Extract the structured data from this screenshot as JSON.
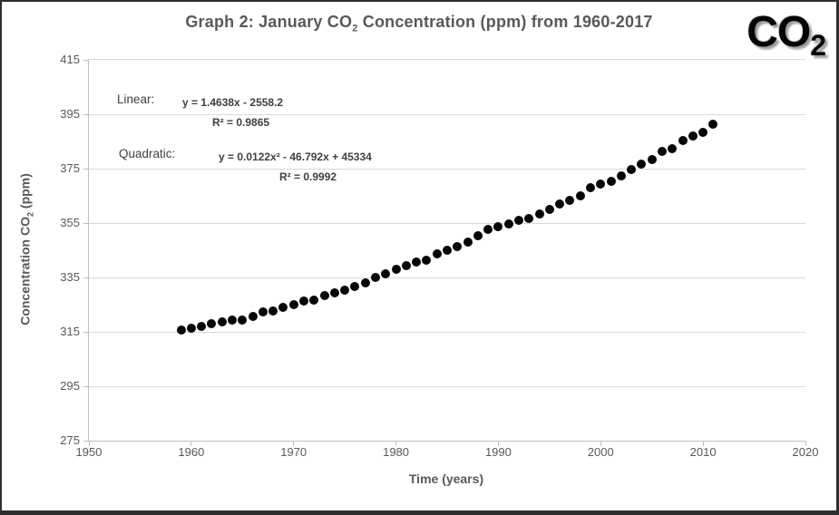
{
  "title": {
    "prefix": "Graph 2: January CO",
    "subscript": "2",
    "suffix": " Concentration (ppm) from 1960-2017"
  },
  "logo": {
    "text": "CO",
    "subscript": "2"
  },
  "axes": {
    "x_title": "Time (years)",
    "y_title_prefix": "Concentration CO",
    "y_title_subscript": "2",
    "y_title_suffix": " (ppm)"
  },
  "annotations": {
    "linear_label": "Linear:",
    "linear_equation": "y = 1.4638x - 2558.2",
    "linear_r2": "R² = 0.9865",
    "quadratic_label": "Quadratic:",
    "quadratic_equation": "y = 0.0122x² - 46.792x + 45334",
    "quadratic_r2": "R² = 0.9992"
  },
  "chart_data": {
    "type": "scatter",
    "title": "Graph 2: January CO₂ Concentration (ppm) from 1960-2017",
    "xlabel": "Time (years)",
    "ylabel": "Concentration CO₂ (ppm)",
    "xlim": [
      1950,
      2020
    ],
    "ylim": [
      275,
      415
    ],
    "x_ticks": [
      1950,
      1960,
      1970,
      1980,
      1990,
      2000,
      2010,
      2020
    ],
    "y_ticks": [
      275,
      295,
      315,
      335,
      355,
      375,
      395,
      415
    ],
    "grid": "horizontal-only",
    "legend": "none",
    "marker_color": "#060606",
    "series": [
      {
        "name": "January CO2 concentration (ppm)",
        "x": [
          1959,
          1960,
          1961,
          1962,
          1963,
          1964,
          1965,
          1966,
          1967,
          1968,
          1969,
          1970,
          1971,
          1972,
          1973,
          1974,
          1975,
          1976,
          1977,
          1978,
          1979,
          1980,
          1981,
          1982,
          1983,
          1984,
          1985,
          1986,
          1987,
          1988,
          1989,
          1990,
          1991,
          1992,
          1993,
          1994,
          1995,
          1996,
          1997,
          1998,
          1999,
          2000,
          2001,
          2002,
          2003,
          2004,
          2005,
          2006,
          2007,
          2008,
          2009,
          2010,
          2011
        ],
        "y": [
          315.6,
          316.4,
          316.9,
          317.9,
          318.7,
          319.4,
          319.4,
          320.6,
          322.3,
          322.6,
          324.0,
          325.1,
          326.2,
          326.8,
          328.5,
          329.4,
          330.4,
          331.7,
          332.9,
          335.0,
          336.2,
          338.0,
          339.2,
          340.8,
          341.4,
          343.7,
          345.0,
          346.3,
          348.0,
          350.4,
          352.8,
          353.7,
          354.7,
          356.0,
          356.7,
          358.4,
          360.0,
          362.1,
          363.2,
          365.0,
          368.1,
          369.3,
          370.5,
          372.4,
          374.7,
          376.8,
          378.2,
          381.4,
          382.5,
          385.4,
          386.9,
          388.5,
          391.2
        ]
      }
    ],
    "trendlines": [
      {
        "name": "Linear",
        "equation": "y = 1.4638x - 2558.2",
        "r_squared": "0.9865"
      },
      {
        "name": "Quadratic",
        "equation": "y = 0.0122x² - 46.792x + 45334",
        "r_squared": "0.9992"
      }
    ]
  }
}
